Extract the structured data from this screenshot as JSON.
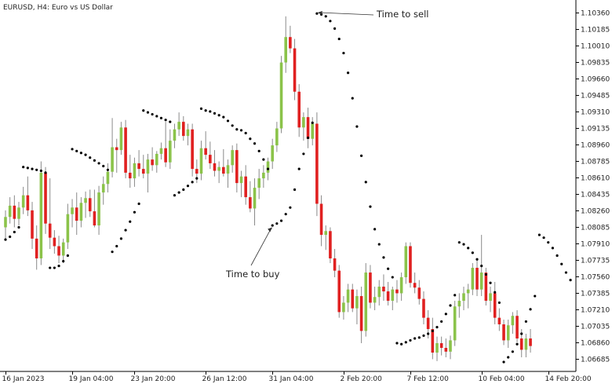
{
  "chart_data": {
    "type": "candlestick",
    "title": "EURUSD, H4:  Euro vs US Dollar",
    "indicator": "parabolic-sar",
    "ylim": [
      1.0655,
      1.1046
    ],
    "yticks": [
      1.1036,
      1.10185,
      1.1001,
      1.09835,
      1.0966,
      1.09485,
      1.0931,
      1.09135,
      1.0896,
      1.08785,
      1.0861,
      1.08435,
      1.0826,
      1.08085,
      1.0791,
      1.07735,
      1.0756,
      1.07385,
      1.0721,
      1.07035,
      1.0686,
      1.06685
    ],
    "ytick_labels": [
      "1.10360",
      "1.10185",
      "1.10010",
      "1.09835",
      "1.09660",
      "1.09485",
      "1.09310",
      "1.09135",
      "1.08960",
      "1.08785",
      "1.08610",
      "1.08435",
      "1.08260",
      "1.08085",
      "1.07910",
      "1.07735",
      "1.07560",
      "1.07385",
      "1.07210",
      "1.07035",
      "1.06860",
      "1.06685"
    ],
    "xticks": [
      {
        "label": "16 Jan 2023",
        "index": 0
      },
      {
        "label": "19 Jan 04:00",
        "index": 15
      },
      {
        "label": "23 Jan 20:00",
        "index": 29
      },
      {
        "label": "26 Jan 12:00",
        "index": 45
      },
      {
        "label": "31 Jan 04:00",
        "index": 60
      },
      {
        "label": "2 Feb 20:00",
        "index": 76
      },
      {
        "label": "7 Feb 12:00",
        "index": 91
      },
      {
        "label": "10 Feb 04:00",
        "index": 107
      },
      {
        "label": "14 Feb 20:00",
        "index": 122
      }
    ],
    "colors": {
      "bull": "#8bc34a",
      "bear": "#e02020",
      "wick": "#8a8a8a",
      "sar": "#000000",
      "grid": "#eeeeee"
    },
    "candles": [
      [
        1.0808,
        1.0826,
        1.0796,
        1.0819
      ],
      [
        1.0819,
        1.084,
        1.0812,
        1.0831
      ],
      [
        1.0831,
        1.0842,
        1.0808,
        1.0817
      ],
      [
        1.0817,
        1.0835,
        1.081,
        1.0829
      ],
      [
        1.0829,
        1.0851,
        1.0822,
        1.0842
      ],
      [
        1.0842,
        1.0862,
        1.082,
        1.0826
      ],
      [
        1.0826,
        1.0835,
        1.0785,
        1.0796
      ],
      [
        1.0796,
        1.081,
        1.0763,
        1.0775
      ],
      [
        1.0775,
        1.0878,
        1.0768,
        1.0866
      ],
      [
        1.0866,
        1.0872,
        1.0801,
        1.0812
      ],
      [
        1.0812,
        1.086,
        1.0785,
        1.0797
      ],
      [
        1.0797,
        1.0805,
        1.078,
        1.0788
      ],
      [
        1.0788,
        1.0799,
        1.077,
        1.0778
      ],
      [
        1.0778,
        1.0796,
        1.077,
        1.0792
      ],
      [
        1.0792,
        1.0833,
        1.0785,
        1.0822
      ],
      [
        1.0822,
        1.0838,
        1.0808,
        1.0829
      ],
      [
        1.0829,
        1.0845,
        1.08,
        1.0815
      ],
      [
        1.0815,
        1.084,
        1.0808,
        1.0834
      ],
      [
        1.0834,
        1.0846,
        1.0818,
        1.0839
      ],
      [
        1.0839,
        1.0848,
        1.0819,
        1.0825
      ],
      [
        1.0825,
        1.0848,
        1.0808,
        1.081
      ],
      [
        1.081,
        1.0852,
        1.08,
        1.0845
      ],
      [
        1.0845,
        1.0862,
        1.0832,
        1.0854
      ],
      [
        1.0854,
        1.0876,
        1.0845,
        1.0867
      ],
      [
        1.0867,
        1.0924,
        1.0861,
        1.0893
      ],
      [
        1.0893,
        1.0902,
        1.0866,
        1.089
      ],
      [
        1.089,
        1.092,
        1.0885,
        1.0914
      ],
      [
        1.0914,
        1.0922,
        1.086,
        1.0866
      ],
      [
        1.0866,
        1.0885,
        1.085,
        1.086
      ],
      [
        1.086,
        1.0882,
        1.0851,
        1.0876
      ],
      [
        1.0876,
        1.089,
        1.0862,
        1.087
      ],
      [
        1.087,
        1.0885,
        1.086,
        1.0865
      ],
      [
        1.0865,
        1.0886,
        1.0845,
        1.088
      ],
      [
        1.088,
        1.0893,
        1.0868,
        1.0874
      ],
      [
        1.0874,
        1.0889,
        1.0866,
        1.0886
      ],
      [
        1.0886,
        1.0898,
        1.088,
        1.0892
      ],
      [
        1.0892,
        1.092,
        1.0872,
        1.0877
      ],
      [
        1.0877,
        1.0912,
        1.087,
        1.09
      ],
      [
        1.09,
        1.0918,
        1.0892,
        1.0912
      ],
      [
        1.0912,
        1.093,
        1.0905,
        1.092
      ],
      [
        1.092,
        1.0926,
        1.09,
        1.0905
      ],
      [
        1.0905,
        1.0918,
        1.0895,
        1.0912
      ],
      [
        1.0912,
        1.0918,
        1.0862,
        1.087
      ],
      [
        1.087,
        1.088,
        1.0855,
        1.0865
      ],
      [
        1.0865,
        1.09,
        1.0858,
        1.0892
      ],
      [
        1.0892,
        1.091,
        1.088,
        1.0885
      ],
      [
        1.0885,
        1.0899,
        1.087,
        1.0876
      ],
      [
        1.0876,
        1.089,
        1.0862,
        1.0868
      ],
      [
        1.0868,
        1.0878,
        1.0855,
        1.0872
      ],
      [
        1.0872,
        1.0891,
        1.0862,
        1.0865
      ],
      [
        1.0865,
        1.088,
        1.085,
        1.0874
      ],
      [
        1.0874,
        1.0895,
        1.0866,
        1.089
      ],
      [
        1.089,
        1.0897,
        1.0845,
        1.0855
      ],
      [
        1.0855,
        1.0868,
        1.084,
        1.0862
      ],
      [
        1.0862,
        1.0874,
        1.0832,
        1.084
      ],
      [
        1.084,
        1.0857,
        1.0824,
        1.0828
      ],
      [
        1.0828,
        1.086,
        1.081,
        1.085
      ],
      [
        1.085,
        1.087,
        1.0838,
        1.086
      ],
      [
        1.086,
        1.0874,
        1.085,
        1.0866
      ],
      [
        1.0866,
        1.0882,
        1.0858,
        1.0878
      ],
      [
        1.0878,
        1.0902,
        1.087,
        1.0895
      ],
      [
        1.0895,
        1.092,
        1.0888,
        1.0913
      ],
      [
        1.0913,
        1.099,
        1.0908,
        1.0983
      ],
      [
        1.0983,
        1.1032,
        1.0972,
        1.101
      ],
      [
        1.101,
        1.1022,
        1.0993,
        1.0998
      ],
      [
        1.0998,
        1.1008,
        1.0943,
        1.0952
      ],
      [
        1.0952,
        1.096,
        1.0904,
        1.0914
      ],
      [
        1.0914,
        1.093,
        1.09,
        1.0925
      ],
      [
        1.0925,
        1.0935,
        1.0892,
        1.0902
      ],
      [
        1.0902,
        1.0925,
        1.0895,
        1.0918
      ],
      [
        1.0918,
        1.093,
        1.082,
        1.0833
      ],
      [
        1.0833,
        1.0842,
        1.0788,
        1.08
      ],
      [
        1.08,
        1.081,
        1.0784,
        1.0804
      ],
      [
        1.0804,
        1.0808,
        1.077,
        1.0775
      ],
      [
        1.0775,
        1.0785,
        1.0755,
        1.0762
      ],
      [
        1.0762,
        1.0768,
        1.0712,
        1.0718
      ],
      [
        1.0718,
        1.0735,
        1.071,
        1.0728
      ],
      [
        1.0728,
        1.0748,
        1.0718,
        1.0742
      ],
      [
        1.0742,
        1.0748,
        1.0718,
        1.0722
      ],
      [
        1.0722,
        1.0742,
        1.0705,
        1.0735
      ],
      [
        1.0735,
        1.0745,
        1.0685,
        1.0698
      ],
      [
        1.0698,
        1.077,
        1.0692,
        1.076
      ],
      [
        1.076,
        1.0768,
        1.0722,
        1.0728
      ],
      [
        1.0728,
        1.0745,
        1.072,
        1.0734
      ],
      [
        1.0734,
        1.0752,
        1.0725,
        1.0745
      ],
      [
        1.0745,
        1.0758,
        1.073,
        1.074
      ],
      [
        1.074,
        1.075,
        1.0725,
        1.073
      ],
      [
        1.073,
        1.0745,
        1.072,
        1.0742
      ],
      [
        1.0742,
        1.0752,
        1.0728,
        1.0738
      ],
      [
        1.0738,
        1.076,
        1.073,
        1.0755
      ],
      [
        1.0755,
        1.0792,
        1.0748,
        1.0788
      ],
      [
        1.0788,
        1.0792,
        1.0744,
        1.0749
      ],
      [
        1.0749,
        1.076,
        1.0738,
        1.0744
      ],
      [
        1.0744,
        1.0752,
        1.0726,
        1.0732
      ],
      [
        1.0732,
        1.074,
        1.0705,
        1.0712
      ],
      [
        1.0712,
        1.072,
        1.069,
        1.07
      ],
      [
        1.07,
        1.0712,
        1.0668,
        1.0675
      ],
      [
        1.0675,
        1.0692,
        1.0666,
        1.0685
      ],
      [
        1.0685,
        1.0692,
        1.0672,
        1.068
      ],
      [
        1.068,
        1.069,
        1.067,
        1.0676
      ],
      [
        1.0676,
        1.0693,
        1.0668,
        1.0688
      ],
      [
        1.0688,
        1.073,
        1.0682,
        1.0724
      ],
      [
        1.0724,
        1.0738,
        1.0712,
        1.073
      ],
      [
        1.073,
        1.0745,
        1.072,
        1.0738
      ],
      [
        1.0738,
        1.0748,
        1.0722,
        1.0742
      ],
      [
        1.0742,
        1.077,
        1.0736,
        1.0765
      ],
      [
        1.0765,
        1.0775,
        1.0735,
        1.0742
      ],
      [
        1.0742,
        1.08,
        1.0735,
        1.076
      ],
      [
        1.076,
        1.0765,
        1.0725,
        1.073
      ],
      [
        1.073,
        1.0745,
        1.0718,
        1.0738
      ],
      [
        1.0738,
        1.075,
        1.0705,
        1.0712
      ],
      [
        1.0712,
        1.0722,
        1.0698,
        1.0705
      ],
      [
        1.0705,
        1.071,
        1.0683,
        1.0688
      ],
      [
        1.0688,
        1.071,
        1.068,
        1.0704
      ],
      [
        1.0704,
        1.0718,
        1.0695,
        1.0714
      ],
      [
        1.0714,
        1.072,
        1.0686,
        1.069
      ],
      [
        1.069,
        1.07,
        1.067,
        1.0678
      ],
      [
        1.0678,
        1.0695,
        1.067,
        1.069
      ],
      [
        1.069,
        1.07,
        1.0675,
        1.0682
      ]
    ],
    "sar": [
      [
        0,
        1.0795
      ],
      [
        1,
        1.0798
      ],
      [
        2,
        1.0803
      ],
      [
        3,
        1.0808
      ],
      [
        4,
        1.0872
      ],
      [
        5,
        1.0871
      ],
      [
        6,
        1.087
      ],
      [
        7,
        1.0869
      ],
      [
        8,
        1.0868
      ],
      [
        9,
        1.0866
      ],
      [
        10,
        1.0765
      ],
      [
        11,
        1.0765
      ],
      [
        12,
        1.0767
      ],
      [
        13,
        1.0772
      ],
      [
        14,
        1.0778
      ],
      [
        15,
        1.0891
      ],
      [
        16,
        1.0889
      ],
      [
        17,
        1.0887
      ],
      [
        18,
        1.0885
      ],
      [
        19,
        1.0882
      ],
      [
        20,
        1.0879
      ],
      [
        21,
        1.0876
      ],
      [
        22,
        1.0873
      ],
      [
        23,
        1.0869
      ],
      [
        24,
        1.0782
      ],
      [
        25,
        1.0788
      ],
      [
        26,
        1.0796
      ],
      [
        27,
        1.0805
      ],
      [
        28,
        1.0814
      ],
      [
        29,
        1.0824
      ],
      [
        30,
        1.0833
      ],
      [
        31,
        1.0932
      ],
      [
        32,
        1.093
      ],
      [
        33,
        1.0928
      ],
      [
        34,
        1.0926
      ],
      [
        35,
        1.0924
      ],
      [
        36,
        1.0922
      ],
      [
        37,
        1.092
      ],
      [
        38,
        1.0842
      ],
      [
        39,
        1.0845
      ],
      [
        40,
        1.0848
      ],
      [
        41,
        1.0852
      ],
      [
        42,
        1.0856
      ],
      [
        43,
        1.086
      ],
      [
        44,
        1.0934
      ],
      [
        45,
        1.0932
      ],
      [
        46,
        1.0931
      ],
      [
        47,
        1.0929
      ],
      [
        48,
        1.0927
      ],
      [
        49,
        1.0925
      ],
      [
        50,
        1.0921
      ],
      [
        51,
        1.0916
      ],
      [
        52,
        1.0912
      ],
      [
        53,
        1.0911
      ],
      [
        54,
        1.0908
      ],
      [
        55,
        1.0902
      ],
      [
        56,
        1.0897
      ],
      [
        57,
        1.0889
      ],
      [
        58,
        1.088
      ],
      [
        59,
        1.087
      ],
      [
        60,
        1.081
      ],
      [
        61,
        1.0812
      ],
      [
        62,
        1.0815
      ],
      [
        63,
        1.0822
      ],
      [
        64,
        1.0829
      ],
      [
        65,
        1.0848
      ],
      [
        66,
        1.087
      ],
      [
        67,
        1.0886
      ],
      [
        68,
        1.0903
      ],
      [
        69,
        1.0919
      ],
      [
        70,
        1.1035
      ],
      [
        71,
        1.1034
      ],
      [
        72,
        1.1032
      ],
      [
        73,
        1.1027
      ],
      [
        74,
        1.1019
      ],
      [
        75,
        1.1008
      ],
      [
        76,
        1.0993
      ],
      [
        77,
        1.0972
      ],
      [
        78,
        1.0945
      ],
      [
        79,
        1.0915
      ],
      [
        80,
        1.0884
      ],
      [
        81,
        1.0856
      ],
      [
        82,
        1.083
      ],
      [
        83,
        1.0806
      ],
      [
        84,
        1.079
      ],
      [
        85,
        1.0776
      ],
      [
        86,
        1.0764
      ],
      [
        87,
        1.0755
      ],
      [
        88,
        1.0685
      ],
      [
        89,
        1.0684
      ],
      [
        90,
        1.0686
      ],
      [
        91,
        1.0688
      ],
      [
        92,
        1.069
      ],
      [
        93,
        1.0691
      ],
      [
        94,
        1.0693
      ],
      [
        95,
        1.0695
      ],
      [
        96,
        1.0698
      ],
      [
        97,
        1.0702
      ],
      [
        98,
        1.0708
      ],
      [
        99,
        1.0716
      ],
      [
        100,
        1.0725
      ],
      [
        101,
        1.0736
      ],
      [
        102,
        1.0792
      ],
      [
        103,
        1.079
      ],
      [
        104,
        1.0786
      ],
      [
        105,
        1.0781
      ],
      [
        106,
        1.0774
      ],
      [
        107,
        1.0767
      ],
      [
        108,
        1.0758
      ],
      [
        109,
        1.0749
      ],
      [
        110,
        1.0739
      ],
      [
        111,
        1.0728
      ],
      [
        112,
        1.0665
      ],
      [
        113,
        1.067
      ],
      [
        114,
        1.0676
      ],
      [
        115,
        1.0684
      ],
      [
        116,
        1.0695
      ],
      [
        117,
        1.0708
      ],
      [
        118,
        1.0721
      ],
      [
        119,
        1.0735
      ],
      [
        120,
        1.08
      ],
      [
        121,
        1.0797
      ],
      [
        122,
        1.0792
      ],
      [
        123,
        1.0786
      ],
      [
        124,
        1.0778
      ],
      [
        125,
        1.0769
      ],
      [
        126,
        1.076
      ],
      [
        127,
        1.0752
      ]
    ],
    "annotations": [
      {
        "text": "Time to sell",
        "target_index": 70,
        "target_price": 1.1036
      },
      {
        "text": "Time to buy",
        "target_index": 60,
        "target_price": 1.0808
      }
    ]
  }
}
